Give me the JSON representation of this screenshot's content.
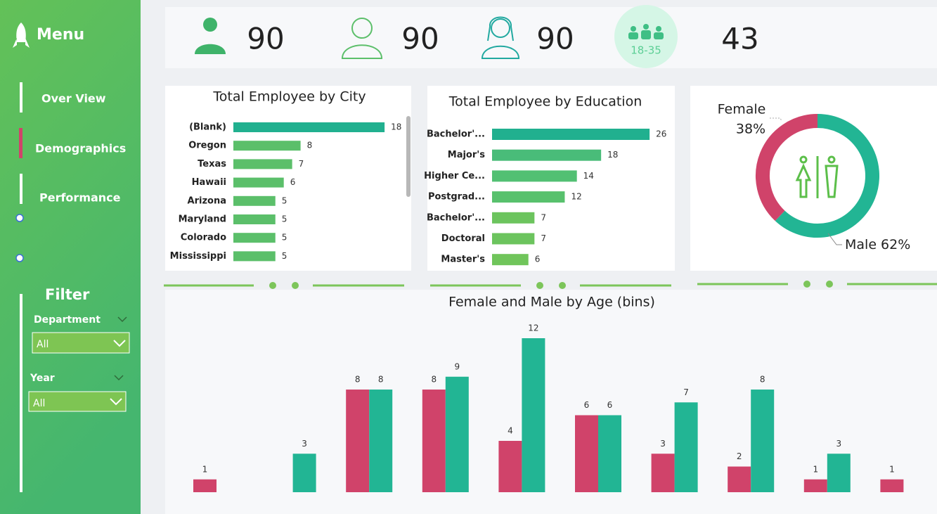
{
  "sidebar": {
    "menu_title": "Menu",
    "menu_items": [
      "Over View",
      "Demographics",
      "Performance"
    ],
    "filter_title": "Filter",
    "filters": [
      {
        "label": "Department",
        "value": "All"
      },
      {
        "label": "Year",
        "value": "All"
      }
    ]
  },
  "kpis": {
    "values": [
      90,
      90,
      90,
      43
    ],
    "badge": "18-35"
  },
  "chart_data": [
    {
      "type": "bar",
      "horizontal": true,
      "title": "Total Employee by City",
      "categories": [
        "(Blank)",
        "Oregon",
        "Texas",
        "Hawaii",
        "Arizona",
        "Maryland",
        "Colorado",
        "Mississippi"
      ],
      "values": [
        18,
        8,
        7,
        6,
        5,
        5,
        5,
        5
      ],
      "colors": [
        "#21b08f",
        "#5bbf6a",
        "#5bbf6a",
        "#5bbf6a",
        "#5bbf6a",
        "#5bbf6a",
        "#5bbf6a",
        "#5bbf6a"
      ]
    },
    {
      "type": "bar",
      "horizontal": true,
      "title": "Total Employee by Education",
      "categories": [
        "Bachelor'...",
        "Major's",
        "Higher Ce...",
        "Postgrad...",
        "Bachelor'...",
        "Doctoral",
        "Master's"
      ],
      "values": [
        26,
        18,
        14,
        12,
        7,
        7,
        6
      ],
      "colors": [
        "#21b08f",
        "#49bc79",
        "#52c073",
        "#58c16d",
        "#6cc45e",
        "#6cc45e",
        "#70c55b"
      ]
    },
    {
      "type": "pie",
      "donut": true,
      "categories": [
        "Female",
        "Male"
      ],
      "values": [
        38,
        62
      ],
      "value_labels": [
        "38%",
        "62%"
      ],
      "colors": [
        "#d0436a",
        "#22b594"
      ]
    },
    {
      "type": "bar",
      "title": "Female and Male by Age (bins)",
      "categories": [
        null,
        null,
        null,
        null,
        null,
        null,
        null,
        null,
        null,
        null
      ],
      "series": [
        {
          "name": "Female",
          "color": "#d0436a",
          "values": [
            1,
            null,
            8,
            8,
            4,
            6,
            3,
            2,
            1,
            1
          ]
        },
        {
          "name": "Male",
          "color": "#22b594",
          "values": [
            null,
            3,
            8,
            9,
            12,
            6,
            7,
            8,
            3,
            null
          ]
        }
      ]
    }
  ]
}
